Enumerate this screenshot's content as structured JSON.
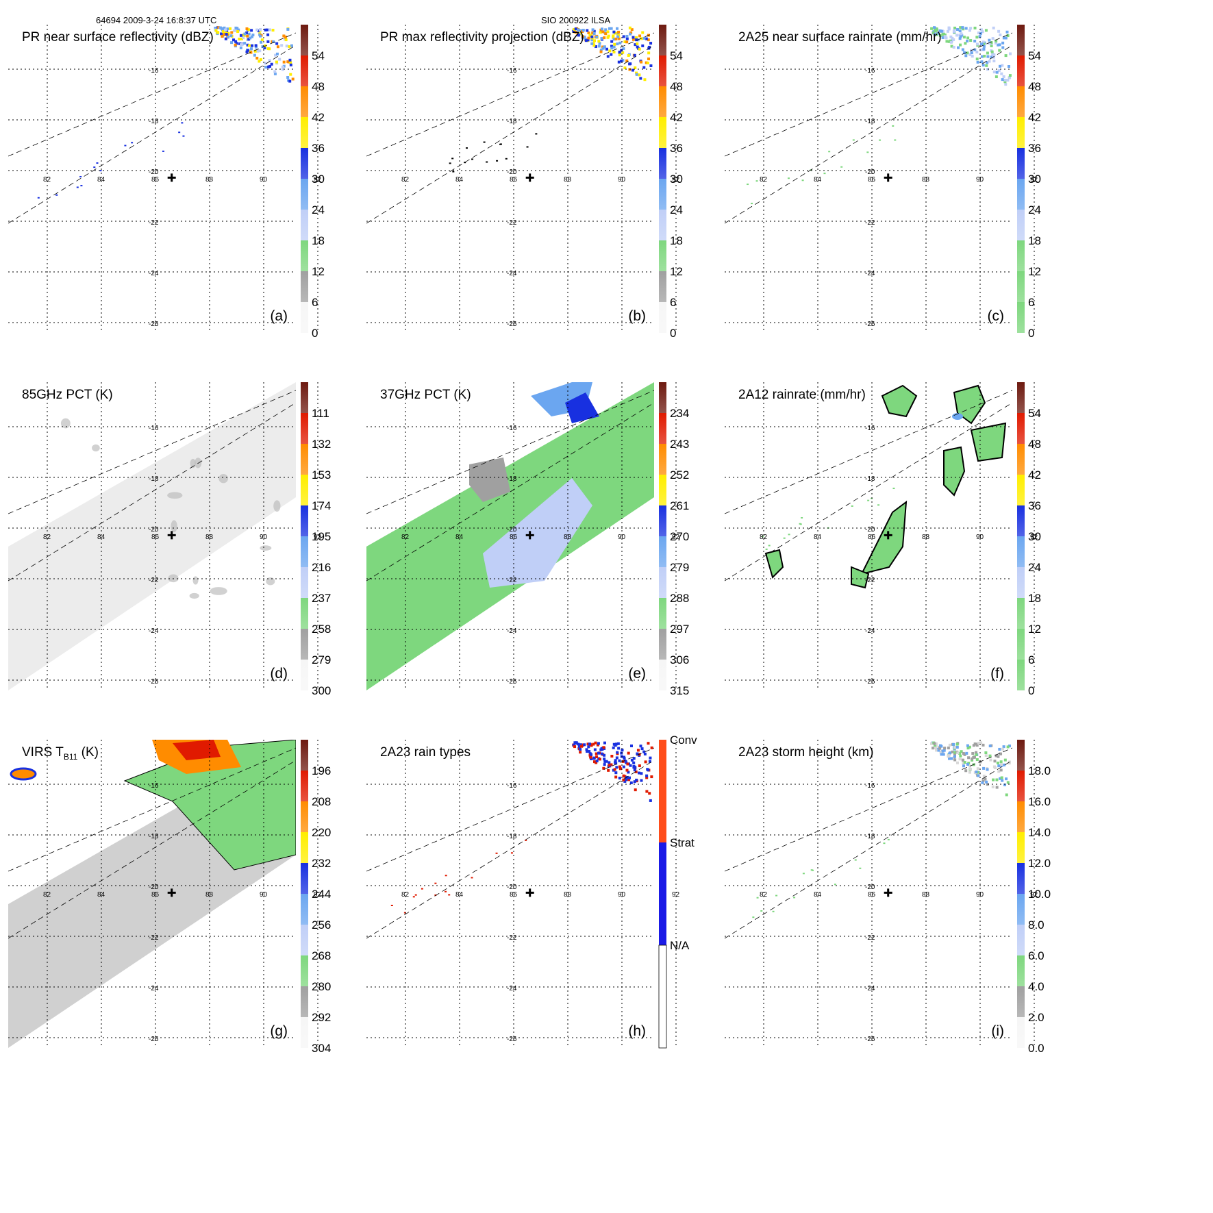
{
  "header": {
    "left": "64694 2009-3-24 16:8:37 UTC",
    "center": "SIO 200922 ILSA"
  },
  "map": {
    "lon_ticks": [
      "82",
      "84",
      "86",
      "88",
      "90",
      "92"
    ],
    "lat_ticks": [
      "-16",
      "-18",
      "-20",
      "-22",
      "-24",
      "-26"
    ],
    "storm_center": {
      "lon": 86.6,
      "lat": -20.2
    }
  },
  "colors": {
    "green": "#7ed77e",
    "gray": "#a0a0a0",
    "lightblue": "#c0cff7",
    "skyblue": "#6ba6f0",
    "blue": "#1830e0",
    "yellow": "#ffee00",
    "orange": "#ff8c00",
    "red": "#e01a00",
    "darkred": "#6e1a10"
  },
  "panels": [
    {
      "id": "a",
      "title": "PR near surface reflectivity (dBZ)",
      "letter": "(a)",
      "background": "none",
      "cbar_type": "standard",
      "cbar_labels": [
        "0",
        "6",
        "12",
        "18",
        "24",
        "30",
        "36",
        "42",
        "48",
        "54"
      ]
    },
    {
      "id": "b",
      "title": "PR max reflectivity projection (dBZ)",
      "letter": "(b)",
      "background": "none",
      "cbar_type": "standard",
      "cbar_labels": [
        "0",
        "6",
        "12",
        "18",
        "24",
        "30",
        "36",
        "42",
        "48",
        "54"
      ]
    },
    {
      "id": "c",
      "title": "2A25 near surface rainrate (mm/hr)",
      "letter": "(c)",
      "background": "none",
      "cbar_type": "rain",
      "cbar_labels": [
        "0",
        "6",
        "12",
        "18",
        "24",
        "30",
        "36",
        "42",
        "48",
        "54"
      ]
    },
    {
      "id": "d",
      "title": "85GHz PCT (K)",
      "letter": "(d)",
      "background": "lightgray",
      "cbar_type": "standard",
      "cbar_labels": [
        "300",
        "279",
        "258",
        "237",
        "216",
        "195",
        "174",
        "153",
        "132",
        "111"
      ]
    },
    {
      "id": "e",
      "title": "37GHz PCT (K)",
      "letter": "(e)",
      "background": "green",
      "cbar_type": "standard",
      "cbar_labels": [
        "315",
        "306",
        "297",
        "288",
        "279",
        "270",
        "261",
        "252",
        "243",
        "234"
      ]
    },
    {
      "id": "f",
      "title": "2A12 rainrate (mm/hr)",
      "letter": "(f)",
      "background": "none",
      "cbar_type": "rain",
      "cbar_labels": [
        "0",
        "6",
        "12",
        "18",
        "24",
        "30",
        "36",
        "42",
        "48",
        "54"
      ]
    },
    {
      "id": "g",
      "title": "VIRS T",
      "title_sub": "B11",
      "title_end": " (K)",
      "letter": "(g)",
      "background": "gray",
      "cbar_type": "standard",
      "cbar_labels": [
        "304",
        "292",
        "280",
        "268",
        "256",
        "244",
        "232",
        "220",
        "208",
        "196"
      ]
    },
    {
      "id": "h",
      "title": "2A23 rain types",
      "letter": "(h)",
      "background": "none",
      "cbar_type": "types",
      "cbar_labels": [
        "N/A",
        "Strat",
        "Conv"
      ]
    },
    {
      "id": "i",
      "title": "2A23 storm height (km)",
      "letter": "(i)",
      "background": "none",
      "cbar_type": "standard",
      "cbar_labels": [
        "0.0",
        "2.0",
        "4.0",
        "6.0",
        "8.0",
        "10.0",
        "12.0",
        "14.0",
        "16.0",
        "18.0"
      ]
    }
  ]
}
